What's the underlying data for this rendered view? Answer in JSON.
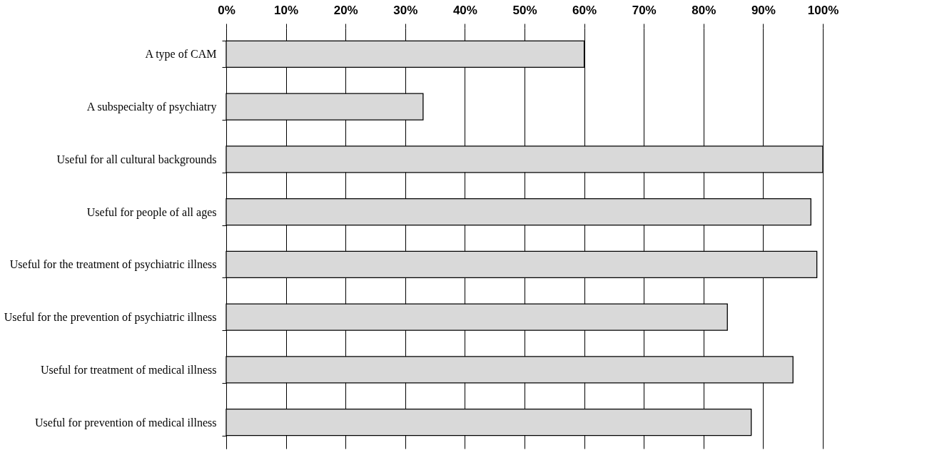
{
  "chart_data": {
    "type": "bar",
    "orientation": "horizontal",
    "categories": [
      "A type of CAM",
      "A subspecialty of psychiatry",
      "Useful for all cultural backgrounds",
      "Useful for people of all ages",
      "Useful for the treatment of psychiatric illness",
      "Useful for the prevention of psychiatric illness",
      "Useful for treatment of medical illness",
      "Useful for prevention of medical illness"
    ],
    "values": [
      60,
      33,
      100,
      98,
      99,
      84,
      95,
      88
    ],
    "color": "#d9d9d9",
    "xlim": [
      0,
      100
    ],
    "xticks": [
      {
        "value": 0,
        "label": "0%"
      },
      {
        "value": 10,
        "label": "10%"
      },
      {
        "value": 20,
        "label": "20%"
      },
      {
        "value": 30,
        "label": "30%"
      },
      {
        "value": 40,
        "label": "40%"
      },
      {
        "value": 50,
        "label": "50%"
      },
      {
        "value": 60,
        "label": "60%"
      },
      {
        "value": 70,
        "label": "70%"
      },
      {
        "value": 80,
        "label": "80%"
      },
      {
        "value": 90,
        "label": "90%"
      },
      {
        "value": 100,
        "label": "100%"
      }
    ],
    "grid": "x"
  }
}
